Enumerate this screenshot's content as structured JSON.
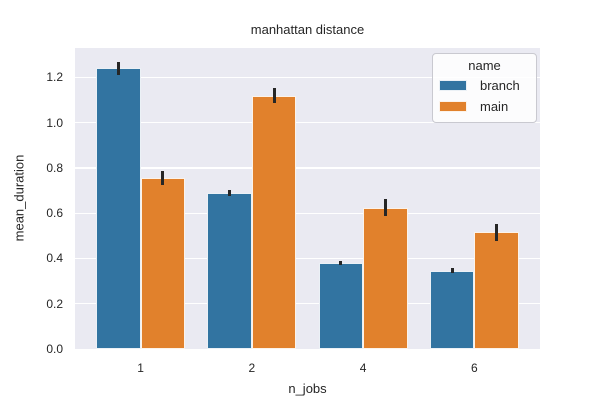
{
  "figure": {
    "background": "#ffffff",
    "plot_background": "#eaeaf2",
    "grid_color": "#ffffff",
    "text_color": "#262626",
    "errorbar_color": "#262626"
  },
  "chart_data": {
    "type": "bar",
    "title": "manhattan distance",
    "xlabel": "n_jobs",
    "ylabel": "mean_duration",
    "categories": [
      "1",
      "2",
      "4",
      "6"
    ],
    "series": [
      {
        "name": "branch",
        "color": "#3274a1",
        "values": [
          1.24,
          0.69,
          0.38,
          0.345
        ],
        "errors": [
          0.03,
          0.012,
          0.007,
          0.011
        ]
      },
      {
        "name": "main",
        "color": "#e1812c",
        "values": [
          0.755,
          1.12,
          0.625,
          0.515
        ],
        "errors": [
          0.03,
          0.033,
          0.037,
          0.037
        ]
      }
    ],
    "ylim": [
      0,
      1.33
    ],
    "ytick_labels": [
      "0.0",
      "0.2",
      "0.4",
      "0.6",
      "0.8",
      "1.0",
      "1.2"
    ],
    "grid": "horizontal",
    "legend": {
      "title": "name",
      "position": "upper-right",
      "entries": [
        "branch",
        "main"
      ]
    }
  }
}
